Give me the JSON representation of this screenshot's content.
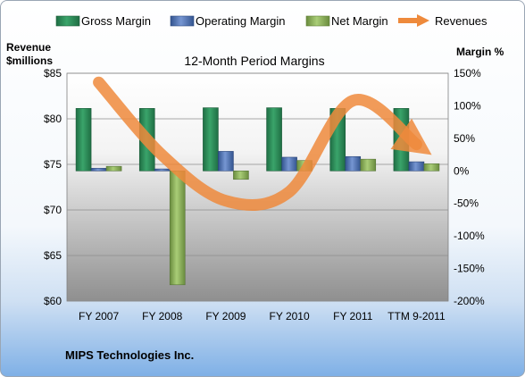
{
  "chart_data": {
    "type": "bar",
    "title": "12-Month Period Margins",
    "categories": [
      "FY 2007",
      "FY 2008",
      "FY 2009",
      "FY 2010",
      "FY 2011",
      "TTM 9-2011"
    ],
    "series": [
      {
        "name": "Gross Margin",
        "axis": "right",
        "kind": "bar",
        "values": [
          96,
          96,
          97,
          97,
          96,
          96
        ]
      },
      {
        "name": "Operating Margin",
        "axis": "right",
        "kind": "bar",
        "values": [
          4,
          3,
          30,
          21,
          22,
          14
        ]
      },
      {
        "name": "Net Margin",
        "axis": "right",
        "kind": "bar",
        "values": [
          7,
          -175,
          -13,
          16,
          18,
          11
        ]
      },
      {
        "name": "Revenues",
        "axis": "left",
        "kind": "trend-arrow",
        "values": [
          84.0,
          76.0,
          71.0,
          72.0,
          82.0,
          77.2
        ]
      }
    ],
    "left_axis": {
      "label_line1": "Revenue",
      "label_line2": "$millions",
      "min": 60,
      "max": 85,
      "ticks": [
        "$60",
        "$65",
        "$70",
        "$75",
        "$80",
        "$85"
      ]
    },
    "right_axis": {
      "label": "Margin %",
      "min": -200,
      "max": 150,
      "ticks": [
        "-200%",
        "-150%",
        "-100%",
        "-50%",
        "0%",
        "50%",
        "100%",
        "150%"
      ]
    },
    "legend_position": "top",
    "grid": true,
    "colors": {
      "gross": "#2e8b57",
      "operating": "#4f73b8",
      "net": "#8db35a",
      "revenues": "#ee8a3c"
    }
  },
  "company": "MIPS Technologies Inc."
}
